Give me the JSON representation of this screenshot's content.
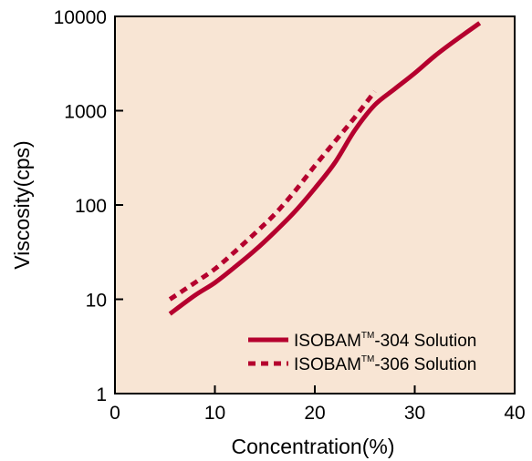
{
  "chart_data": {
    "type": "line",
    "title": "",
    "xlabel": "Concentration(%)",
    "ylabel": "Viscosity(cps)",
    "xlim": [
      0,
      40
    ],
    "ylim": [
      1,
      10000
    ],
    "y_scale": "log",
    "x_ticks": [
      "0",
      "10",
      "20",
      "30",
      "40"
    ],
    "y_ticks": [
      "1",
      "10",
      "100",
      "1000",
      "10000"
    ],
    "grid": false,
    "legend_position": "bottom-right",
    "plot_background": "#f8e5d4",
    "series": [
      {
        "name": "ISOBAM™-304 Solution",
        "legend_main": "ISOBAM",
        "legend_tm": "TM",
        "legend_suffix": "-304 Solution",
        "color": "#b5002e",
        "style": "solid",
        "x": [
          5.5,
          8,
          10,
          12,
          14,
          16,
          18,
          20,
          22,
          24,
          26,
          28,
          30,
          32,
          34,
          36.5
        ],
        "y": [
          7,
          11,
          15,
          22,
          33,
          52,
          85,
          150,
          280,
          620,
          1150,
          1700,
          2500,
          3800,
          5500,
          8500
        ]
      },
      {
        "name": "ISOBAM™-306 Solution",
        "legend_main": "ISOBAM",
        "legend_tm": "TM",
        "legend_suffix": "-306 Solution",
        "color": "#b5002e",
        "style": "dashed",
        "x": [
          5.5,
          8,
          10,
          12,
          14,
          16,
          18,
          20,
          22,
          24,
          26
        ],
        "y": [
          10,
          15,
          21,
          32,
          50,
          80,
          140,
          260,
          470,
          850,
          1600
        ]
      }
    ]
  }
}
